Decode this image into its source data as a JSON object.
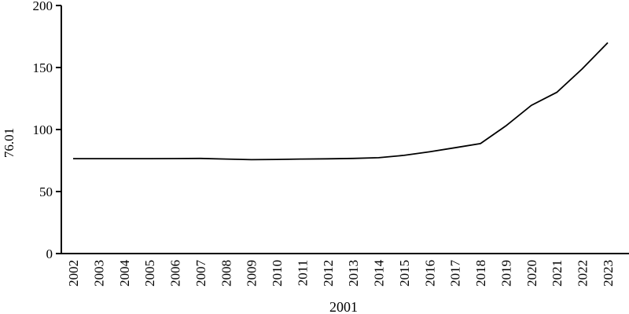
{
  "chart_data": {
    "type": "line",
    "title": "",
    "xlabel": "2001",
    "ylabel": "76.01",
    "x": [
      2002,
      2003,
      2004,
      2005,
      2006,
      2007,
      2008,
      2009,
      2010,
      2011,
      2012,
      2013,
      2014,
      2015,
      2016,
      2017,
      2018,
      2019,
      2020,
      2021,
      2022,
      2023
    ],
    "values": [
      76.5,
      76.5,
      76.5,
      76.5,
      76.6,
      76.7,
      76.2,
      75.7,
      75.9,
      76.2,
      76.4,
      76.7,
      77.3,
      79.2,
      82.0,
      85.3,
      88.7,
      103.0,
      119.5,
      130.0,
      149.0,
      170.0
    ],
    "yticks": [
      0,
      50,
      100,
      150,
      200
    ],
    "ylim": [
      0,
      200
    ],
    "grid": false,
    "legend": null,
    "line_color": "#000000",
    "axis_color": "#000000",
    "background": "#ffffff"
  }
}
